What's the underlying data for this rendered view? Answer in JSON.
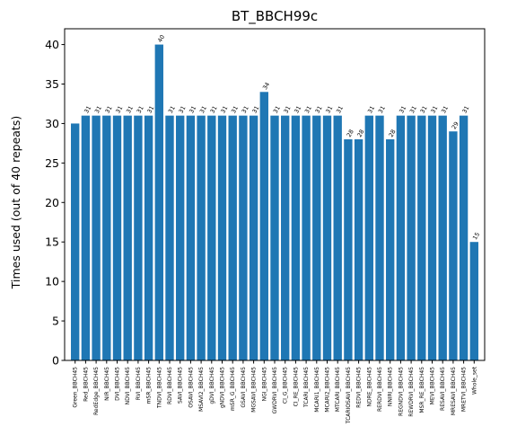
{
  "chart_data": {
    "type": "bar",
    "title": "BT_BBCH99c",
    "xlabel": "",
    "ylabel": "Times used (out of 40 repeats)",
    "ylim": [
      0,
      42
    ],
    "yticks": [
      0,
      5,
      10,
      15,
      20,
      25,
      30,
      35,
      40
    ],
    "grid": false,
    "bar_color": "#1f77b4",
    "categories": [
      "Green_BBCH45",
      "Red_BBCH45",
      "RedEdge_BBCH45",
      "NIR_BBCH45",
      "DVI_BBCH45",
      "NDVI_BBCH45",
      "RVI_BBCH45",
      "mSR_BBCH45",
      "TNDVI_BBCH45",
      "RDVI_BBCH45",
      "SAVI_BBCH45",
      "OSAVI_BBCH45",
      "MSAVI2_BBCH45",
      "gDVI_BBCH45",
      "gNDVI_BBCH45",
      "mSR_G_BBCH45",
      "GSAVI_BBCH45",
      "MGSAVI_BBCH45",
      "NGI_BBCH45",
      "GWDRVI_BBCH45",
      "CI_G_BBCH45",
      "CI_RE_BBCH45",
      "TCARI_BBCH45",
      "MCARI1_BBCH45",
      "MCARI2_BBCH45",
      "MTCARI_BBCH45",
      "TCARIOSAVI_BBCH45",
      "REDVI_BBCH45",
      "NDRE_BBCH45",
      "RERDVI_BBCH45",
      "NNIRI_BBCH45",
      "REGNDVI_BBCH45",
      "REWDRVI_BBCH45",
      "MSR_RE_BBCH45",
      "MEVI_BBCH45",
      "RESAVI_BBCH45",
      "MRESAVI_BBCH45",
      "MRETVI_BBCH45",
      "Whole_set"
    ],
    "values": [
      30,
      31,
      31,
      31,
      31,
      31,
      31,
      31,
      40,
      31,
      31,
      31,
      31,
      31,
      31,
      31,
      31,
      31,
      34,
      31,
      31,
      31,
      31,
      31,
      31,
      31,
      28,
      28,
      31,
      31,
      28,
      31,
      31,
      31,
      31,
      31,
      29,
      31,
      15
    ],
    "data_labels": [
      "",
      "31",
      "31",
      "31",
      "31",
      "31",
      "31",
      "31",
      "40",
      "31",
      "31",
      "31",
      "31",
      "31",
      "31",
      "31",
      "31",
      "31",
      "34",
      "31",
      "31",
      "31",
      "31",
      "31",
      "31",
      "31",
      "28",
      "28",
      "31",
      "31",
      "28",
      "31",
      "31",
      "31",
      "31",
      "31",
      "29",
      "31",
      "15"
    ]
  }
}
